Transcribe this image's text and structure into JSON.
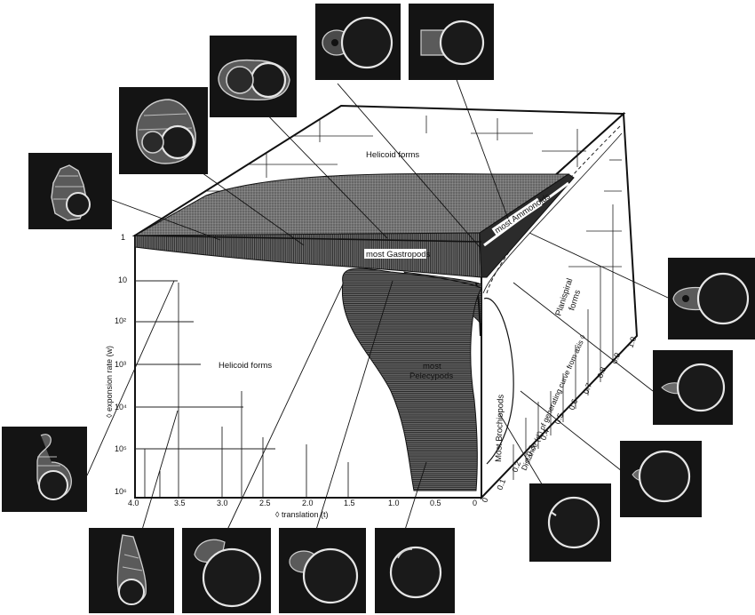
{
  "front_face": {
    "y_axis_label": "◊ exponsion rate (w)",
    "y_ticks": [
      "1",
      "10",
      "10²",
      "10³",
      "10⁴",
      "10⁵",
      "10⁶"
    ],
    "x_axis_label": "◊ translation (t)",
    "x_ticks": [
      "4.0",
      "3.5",
      "3.0",
      "2.5",
      "2.0",
      "1.5",
      "1.0",
      "0.5",
      "0"
    ]
  },
  "side_face": {
    "axis_label": "Distance (d') of generating curve from axis ◊",
    "ticks": [
      "0",
      "0.1",
      "0.2",
      "0.3",
      "0.4",
      "0.5",
      "0.6",
      "0.7",
      "0.8",
      "0.9",
      "1.0"
    ]
  },
  "regions": {
    "helicoid_top": "Helicoid    forms",
    "helicoid_front": "Helicoid forms",
    "planispiral_1": "Planispiral",
    "planispiral_2": "forms",
    "gastropods": "most  Gastropods",
    "ammonoids": "most  Ammonoids",
    "pelecypods_1": "most",
    "pelecypods_2": "Pelecypods",
    "brachiopods": "Most Brochiopods"
  },
  "specimens": [
    {
      "name": "gastropod-tall-spire",
      "shape": "spire-tall"
    },
    {
      "name": "gastropod-high-spire",
      "shape": "spire-mid"
    },
    {
      "name": "gastropod-low-spire",
      "shape": "spire-low"
    },
    {
      "name": "ammonoid-side-view",
      "shape": "disc-side"
    },
    {
      "name": "ammonoid-front-view",
      "shape": "disc-front"
    },
    {
      "name": "planispiral-involute",
      "shape": "planispiral"
    },
    {
      "name": "brachiopod-like-1",
      "shape": "beak-round"
    },
    {
      "name": "brachiopod-like-2",
      "shape": "beak-small"
    },
    {
      "name": "brachiopod-like-3",
      "shape": "round-tip"
    },
    {
      "name": "pelecypod-round",
      "shape": "round"
    },
    {
      "name": "pelecypod-umbo",
      "shape": "umbo"
    },
    {
      "name": "pelecypod-large-umbo",
      "shape": "umbo-big"
    },
    {
      "name": "tall-cone",
      "shape": "cone"
    },
    {
      "name": "hooked-form",
      "shape": "hook"
    }
  ]
}
